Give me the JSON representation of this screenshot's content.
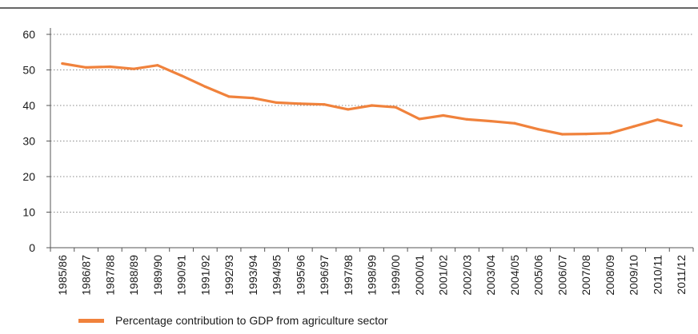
{
  "chart_data": {
    "type": "line",
    "title": "",
    "xlabel": "",
    "ylabel": "",
    "ylim": [
      0,
      60
    ],
    "yticks": [
      "0",
      "10",
      "20",
      "30",
      "40",
      "50",
      "60"
    ],
    "grid": "horizontal-dotted",
    "legend_position": "bottom-left",
    "categories": [
      "1985/86",
      "1986/87",
      "1987/88",
      "1988/89",
      "1989/90",
      "1990/91",
      "1991/92",
      "1992/93",
      "1993/94",
      "1994/95",
      "1995/96",
      "1996/97",
      "1997/98",
      "1998/99",
      "1999/00",
      "2000/01",
      "2001/02",
      "2002/03",
      "2003/04",
      "2004/05",
      "2005/06",
      "2006/07",
      "2007/08",
      "2008/09",
      "2009/10",
      "2010/11",
      "2011/12"
    ],
    "series": [
      {
        "name": "Percentage contribution to GDP from agriculture sector",
        "color": "#F0823C",
        "values": [
          51.8,
          50.7,
          50.9,
          50.3,
          51.3,
          48.4,
          45.3,
          42.5,
          42.1,
          40.8,
          40.5,
          40.3,
          38.9,
          40.0,
          39.5,
          36.2,
          37.2,
          36.1,
          35.6,
          35.0,
          33.3,
          31.9,
          32.0,
          32.2,
          34.1,
          36.0,
          34.3
        ]
      }
    ]
  }
}
